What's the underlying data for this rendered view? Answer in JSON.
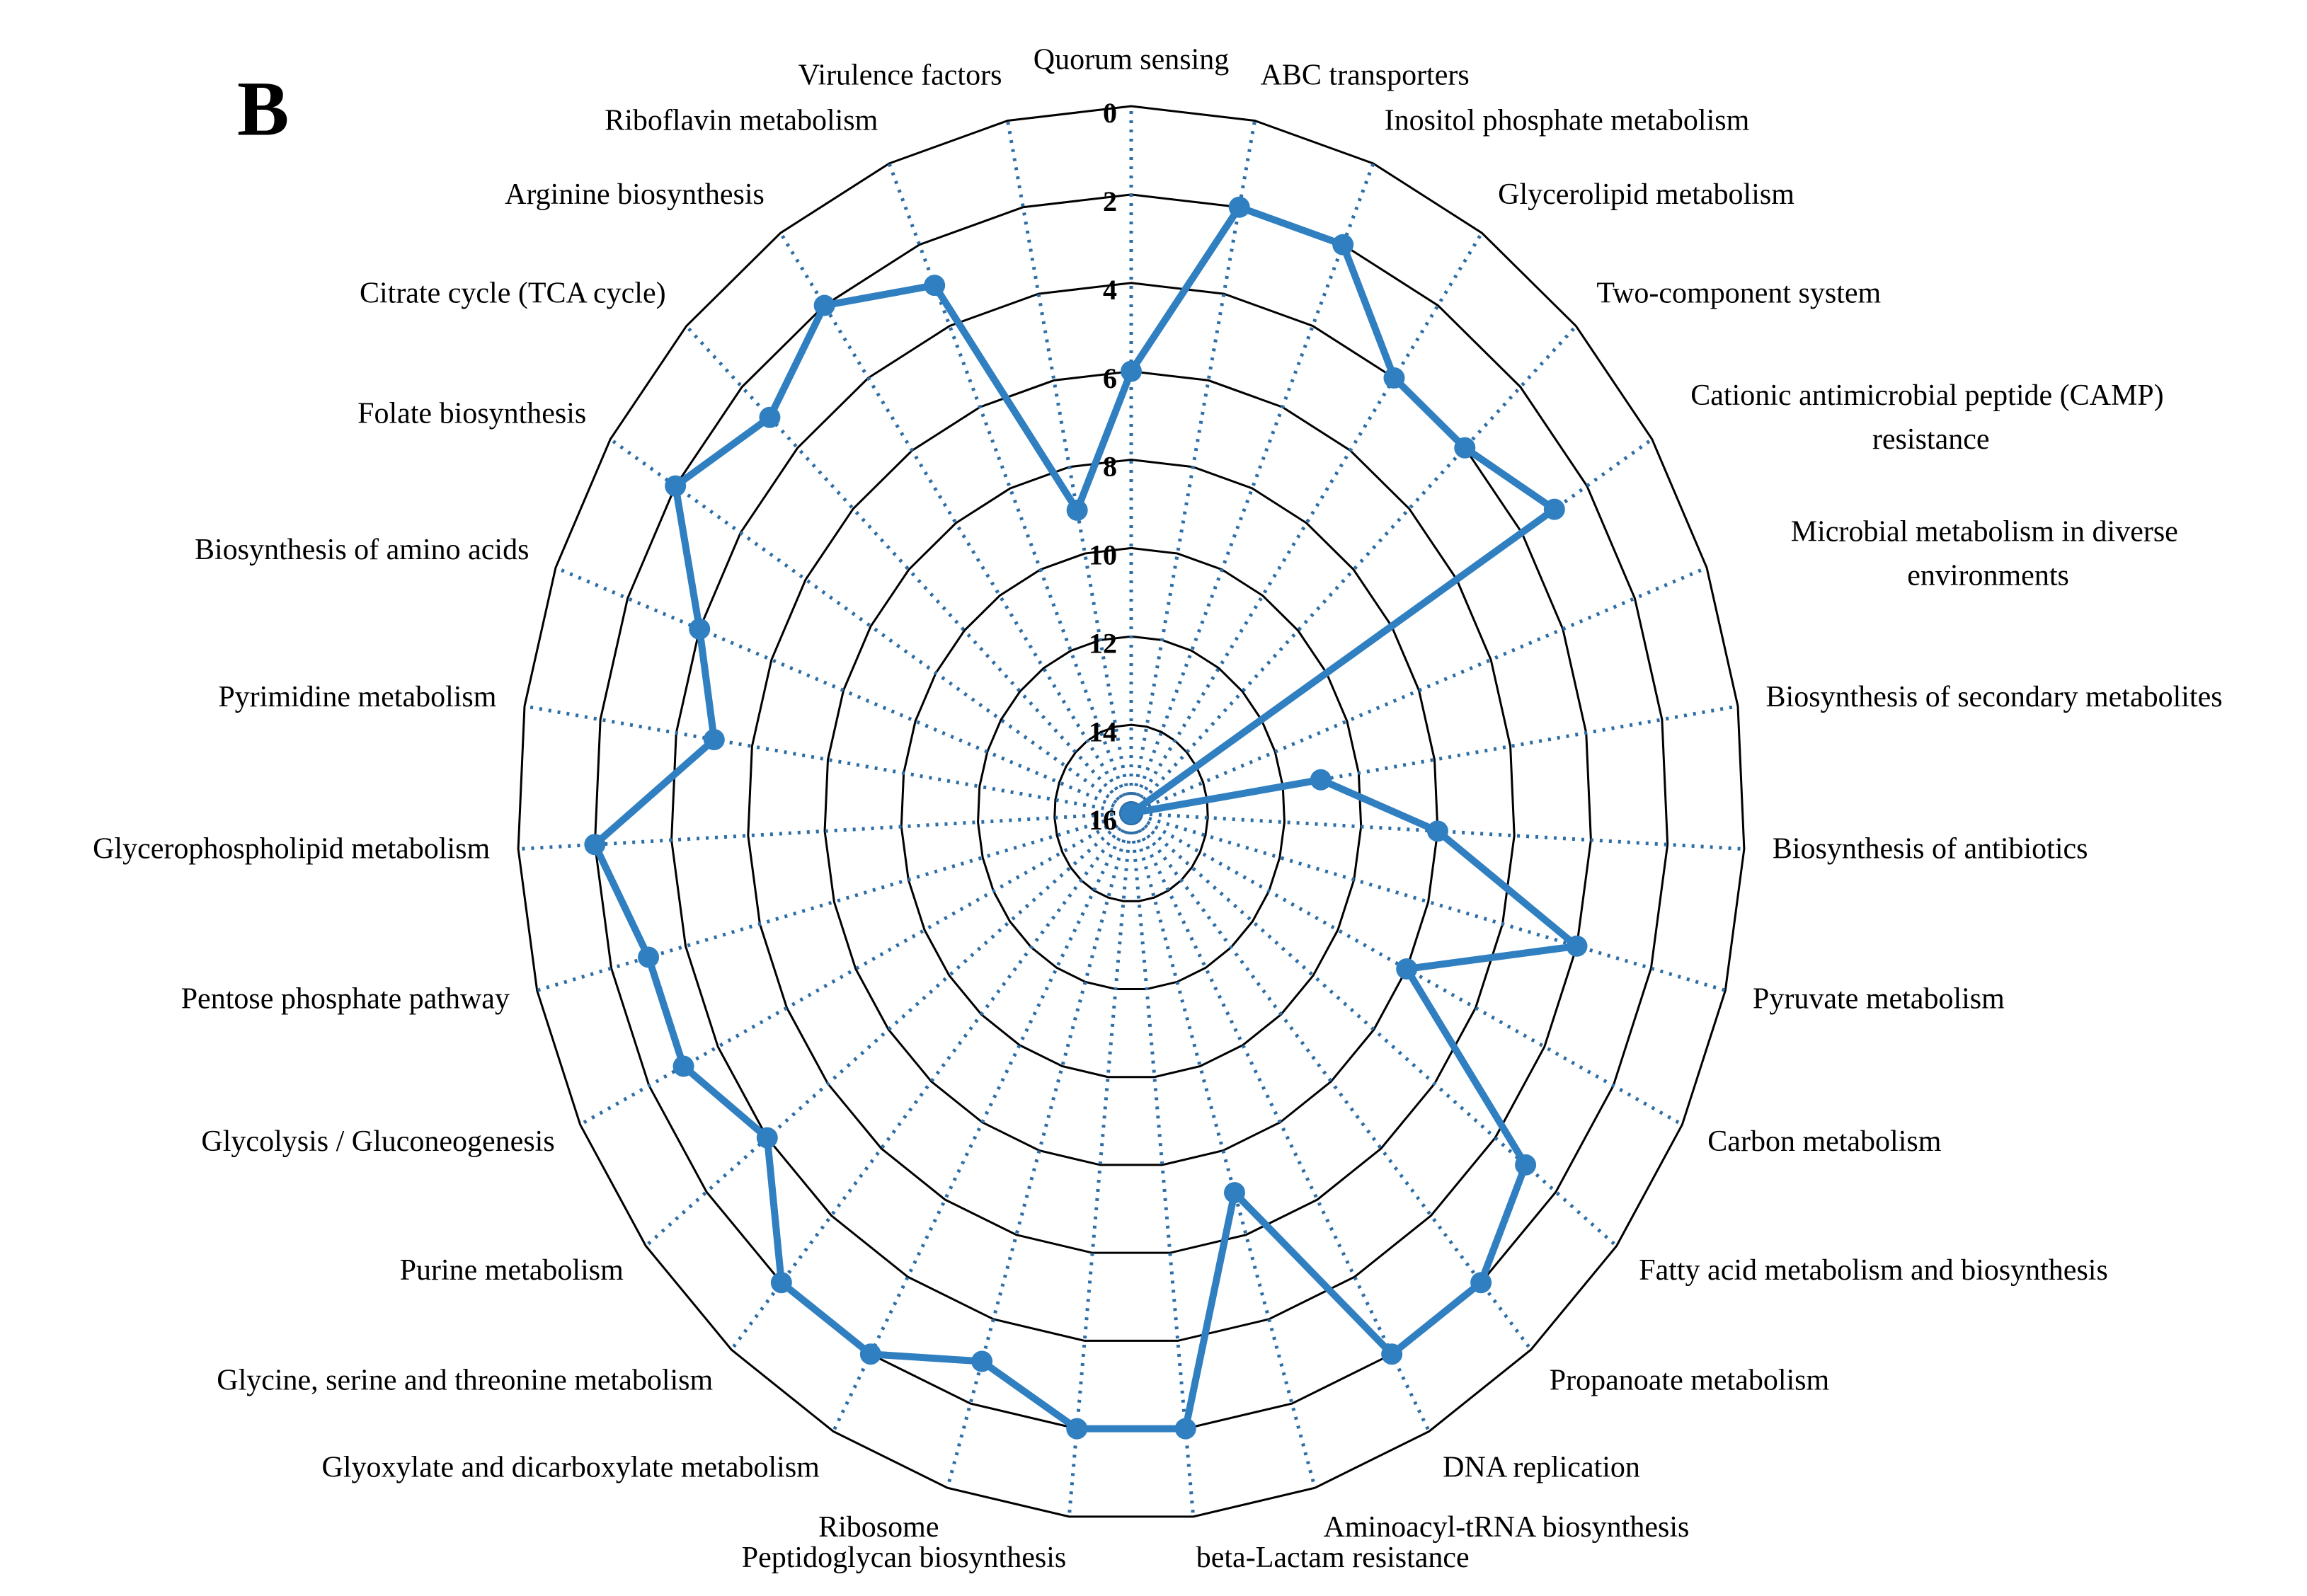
{
  "chart_data": {
    "type": "radar",
    "panel_label": "B",
    "categories": [
      "Quorum sensing",
      "ABC transporters",
      "Inositol phosphate metabolism",
      "Glycerolipid metabolism",
      "Two-component system",
      "Cationic antimicrobial peptide (CAMP) resistance",
      "Microbial metabolism in diverse environments",
      "Biosynthesis of secondary metabolites",
      "Biosynthesis of antibiotics",
      "Pyruvate metabolism",
      "Carbon metabolism",
      "Fatty acid metabolism and biosynthesis",
      "Propanoate metabolism",
      "DNA replication",
      "Aminoacyl-tRNA biosynthesis",
      "beta-Lactam resistance",
      "Peptidoglycan biosynthesis",
      "Ribosome",
      "Glyoxylate and dicarboxylate metabolism",
      "Glycine, serine and threonine metabolism",
      "Purine metabolism",
      "Glycolysis / Gluconeogenesis",
      "Pentose phosphate pathway",
      "Glycerophospholipid metabolism",
      "Pyrimidine metabolism",
      "Biosynthesis of amino acids",
      "Folate biosynthesis",
      "Citrate cycle (TCA cycle)",
      "Arginine biosynthesis",
      "Riboflavin metabolism",
      "Virulence factors"
    ],
    "values": [
      6,
      2,
      2,
      4,
      4,
      3,
      16,
      11,
      8,
      4,
      8,
      3,
      2,
      2,
      7,
      2,
      2,
      3,
      2,
      2,
      4,
      3,
      3,
      2,
      5,
      4,
      2,
      3,
      2,
      3,
      9
    ],
    "color": "#2f7fc1",
    "ylim": [
      0,
      16
    ],
    "yticks": [
      0,
      2,
      4,
      6,
      8,
      10,
      12,
      14,
      16
    ],
    "reverse": true,
    "grid": true
  }
}
